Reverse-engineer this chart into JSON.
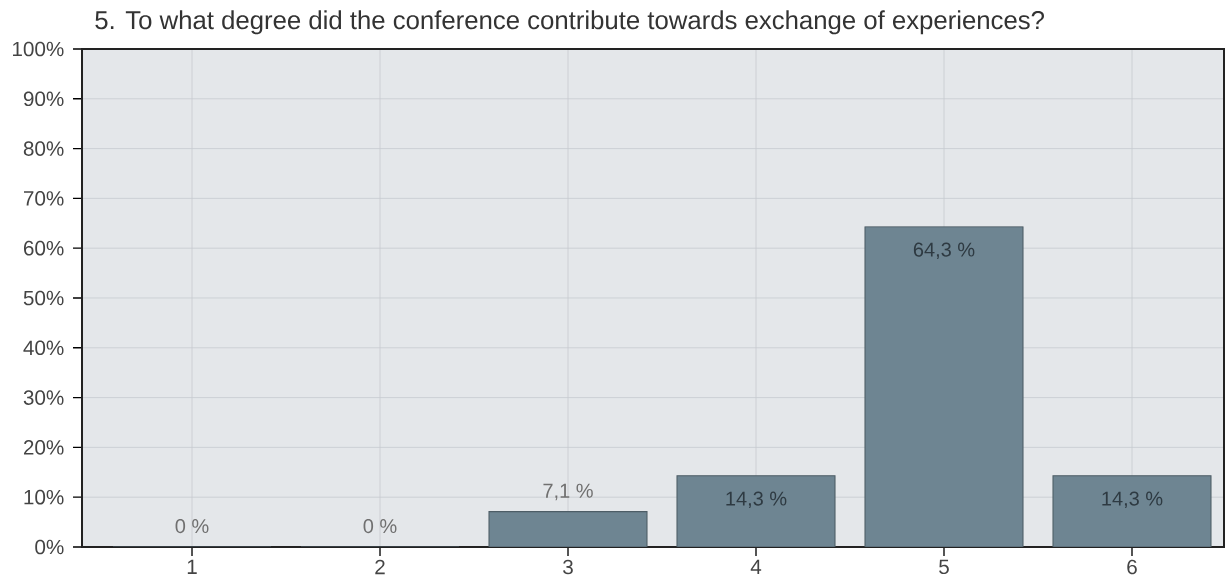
{
  "chart_data": {
    "type": "bar",
    "title": "5. To what degree did the conference contribute towards exchange of experiences?",
    "categories": [
      "1",
      "2",
      "3",
      "4",
      "5",
      "6"
    ],
    "values": [
      0,
      0,
      7.1,
      14.3,
      64.3,
      14.3
    ],
    "value_labels": [
      "0 %",
      "0 %",
      "7,1 %",
      "14,3 %",
      "64,3 %",
      "14,3 %"
    ],
    "color": "#6e8592",
    "ylim": [
      0,
      100
    ],
    "yticks": [
      {
        "value": 0,
        "label": "0%"
      },
      {
        "value": 10,
        "label": "10%"
      },
      {
        "value": 20,
        "label": "20%"
      },
      {
        "value": 30,
        "label": "30%"
      },
      {
        "value": 40,
        "label": "40%"
      },
      {
        "value": 50,
        "label": "50%"
      },
      {
        "value": 60,
        "label": "60%"
      },
      {
        "value": 70,
        "label": "70%"
      },
      {
        "value": 80,
        "label": "80%"
      },
      {
        "value": 90,
        "label": "90%"
      },
      {
        "value": 100,
        "label": "100%"
      }
    ],
    "grid": true
  }
}
